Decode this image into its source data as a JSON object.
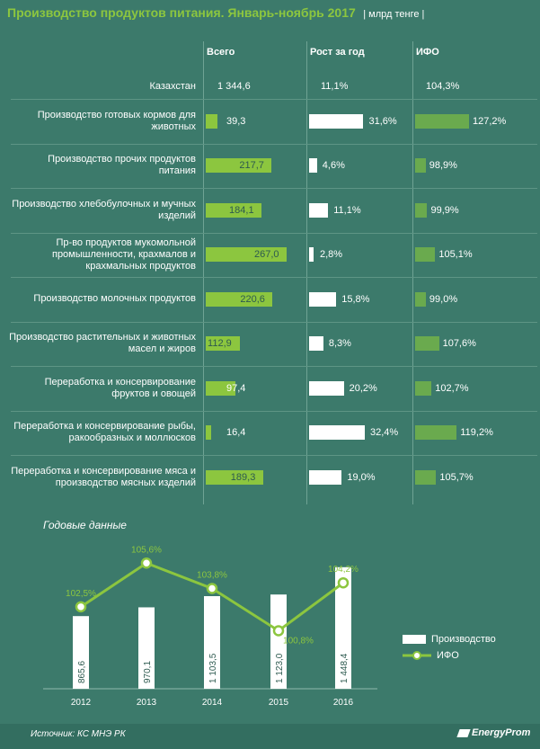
{
  "header": {
    "title": "Производство продуктов питания. Январь-ноябрь 2017",
    "unit": "| млрд тенге |"
  },
  "columns": {
    "total": "Всего",
    "growth": "Рост за год",
    "ifo": "ИФО"
  },
  "kazakhstan": {
    "label": "Казахстан",
    "total": "1 344,6",
    "growth": "11,1%",
    "ifo": "104,3%"
  },
  "chart_data": [
    {
      "type": "bar",
      "categories": [
        "Производство готовых кормов для животных",
        "Производство прочих продуктов питания",
        "Производство хлебобулочных и мучных изделий",
        "Пр-во продуктов мукомольной промышленности, крахмалов и крахмальных продуктов",
        "Производство молочных продуктов",
        "Производство растительных и животных масел и жиров",
        "Переработка и консервирование фруктов и овощей",
        "Переработка и консервирование рыбы, ракообразных и моллюсков",
        "Переработка и консервирование мяса и производство мясных изделий"
      ],
      "series": [
        {
          "name": "Всего",
          "values": [
            39.3,
            217.7,
            184.1,
            267.0,
            220.6,
            112.9,
            97.4,
            16.4,
            189.3
          ],
          "labels": [
            "39,3",
            "217,7",
            "184,1",
            "267,0",
            "220,6",
            "112,9",
            "97,4",
            "16,4",
            "189,3"
          ]
        },
        {
          "name": "Рост за год",
          "values": [
            31.6,
            4.6,
            11.1,
            2.8,
            15.8,
            8.3,
            20.2,
            32.4,
            19.0
          ],
          "labels": [
            "31,6%",
            "4,6%",
            "11,1%",
            "2,8%",
            "15,8%",
            "8,3%",
            "20,2%",
            "32,4%",
            "19,0%"
          ]
        },
        {
          "name": "ИФО",
          "values": [
            127.2,
            98.9,
            99.9,
            105.1,
            99.0,
            107.6,
            102.7,
            119.2,
            105.7
          ],
          "labels": [
            "127,2%",
            "98,9%",
            "99,9%",
            "105,1%",
            "99,0%",
            "107,6%",
            "102,7%",
            "119,2%",
            "105,7%"
          ]
        }
      ]
    },
    {
      "type": "bar",
      "title": "Годовые данные",
      "categories": [
        "2012",
        "2013",
        "2014",
        "2015",
        "2016"
      ],
      "series": [
        {
          "name": "Производство",
          "type": "bar",
          "values": [
            865.6,
            970.1,
            1103.5,
            1123.0,
            1448.4
          ],
          "labels": [
            "865,6",
            "970,1",
            "1 103,5",
            "1 123,0",
            "1 448,4"
          ]
        },
        {
          "name": "ИФО",
          "type": "line",
          "values": [
            102.5,
            105.6,
            103.8,
            100.8,
            104.2
          ],
          "labels": [
            "102,5%",
            "105,6%",
            "103,8%",
            "100,8%",
            "104,2%"
          ]
        }
      ],
      "legend": "right"
    }
  ],
  "colors": {
    "background": "#3c7a6b",
    "total_bar": "#8cc63f",
    "growth_bar": "#ffffff",
    "ifo_bar": "#6aaa4e",
    "accent": "#8cc63f"
  },
  "footer": {
    "source": "Источник: КС МНЭ РК",
    "logo": "EnergyProm",
    "logo_icon": "energyprom-logo-icon"
  }
}
